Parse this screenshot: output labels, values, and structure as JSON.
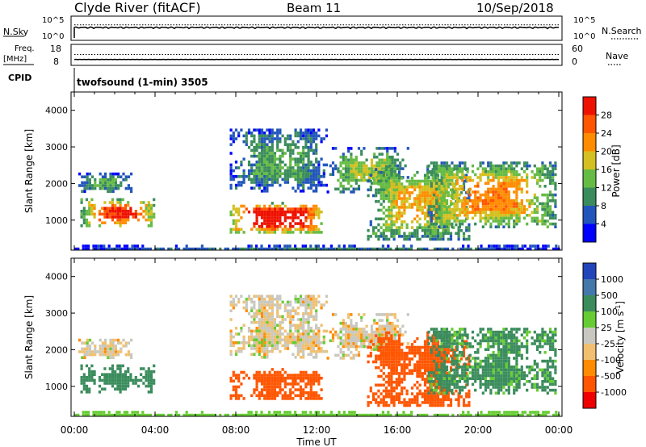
{
  "header": {
    "station": "Clyde River (fitACF)",
    "beam": "Beam 11",
    "date": "10/Sep/2018"
  },
  "nsky_panel": {
    "left_label": "N.Sky",
    "left_ticks": [
      "10^5",
      "10^0"
    ],
    "right_label": "N.Search",
    "right_ticks": [
      "10^5",
      "10^0"
    ],
    "nsky_value": 500,
    "nsearch_value": 3000
  },
  "freq_panel": {
    "label_line1": "Freq.",
    "label_line2": "[MHz]",
    "left_ticks": [
      18,
      8
    ],
    "right_label": "Nave",
    "right_ticks": [
      60,
      0
    ],
    "freq_mhz": 10.2,
    "nave": 38
  },
  "cpid_panel": {
    "label": "CPID",
    "program": "twofsound (1-min) 3505"
  },
  "chart_data": [
    {
      "type": "heatmap",
      "name": "Power",
      "ylabel": "Slant Range [km]",
      "ylim": [
        180,
        4500
      ],
      "yticks": [
        1000,
        2000,
        3000,
        4000
      ],
      "xlim": [
        0,
        24
      ],
      "colorbar": {
        "label": "Power [dB]",
        "ticks": [
          "28",
          "24",
          "20",
          "16",
          "12",
          "8",
          "4"
        ],
        "colors": [
          "#0000ff",
          "#2255bb",
          "#3a8c5c",
          "#66bb44",
          "#d4c020",
          "#ff8c00",
          "#ff5500",
          "#ee1100"
        ]
      },
      "echo_regions": [
        {
          "t0": 0.2,
          "t1": 2.8,
          "r0": 1800,
          "r1": 2300,
          "v": 9
        },
        {
          "t0": 0.3,
          "t1": 4.0,
          "r0": 850,
          "r1": 1600,
          "v": 20
        },
        {
          "t0": 7.7,
          "t1": 12.3,
          "r0": 700,
          "r1": 1500,
          "v": 26
        },
        {
          "t0": 7.7,
          "t1": 12.5,
          "r0": 1800,
          "r1": 3500,
          "v": 8
        },
        {
          "t0": 12.5,
          "t1": 16.5,
          "r0": 1800,
          "r1": 3000,
          "v": 11
        },
        {
          "t0": 14.5,
          "t1": 19.5,
          "r0": 500,
          "r1": 2500,
          "v": 14
        },
        {
          "t0": 17.5,
          "t1": 23.8,
          "r0": 800,
          "r1": 2600,
          "v": 16
        },
        {
          "t0": 0.0,
          "t1": 24.0,
          "r0": 180,
          "r1": 330,
          "v": 6
        }
      ]
    },
    {
      "type": "heatmap",
      "name": "Velocity",
      "ylabel": "Slant Range [km]",
      "ylim": [
        180,
        4500
      ],
      "yticks": [
        1000,
        2000,
        3000,
        4000
      ],
      "xlim": [
        0,
        24
      ],
      "xlabel": "Time UT",
      "xticks": [
        "00:00",
        "04:00",
        "08:00",
        "12:00",
        "16:00",
        "20:00",
        "00:00"
      ],
      "colorbar": {
        "label": "Velocity [m s^-1]",
        "ticks": [
          "1000",
          "500",
          "100",
          "25",
          "-25",
          "-100",
          "-500",
          "-1000"
        ],
        "colors": [
          "#ee0000",
          "#ff5500",
          "#ff8c00",
          "#f0c070",
          "#c8c8c0",
          "#66cc33",
          "#3a8c5c",
          "#4477aa",
          "#2244bb"
        ]
      },
      "echo_regions": [
        {
          "t0": 0.2,
          "t1": 2.8,
          "r0": 1800,
          "r1": 2300,
          "v": 0
        },
        {
          "t0": 0.3,
          "t1": 4.0,
          "r0": 850,
          "r1": 1600,
          "v": 200
        },
        {
          "t0": 7.7,
          "t1": 12.3,
          "r0": 700,
          "r1": 1500,
          "v": -300
        },
        {
          "t0": 7.7,
          "t1": 12.5,
          "r0": 1800,
          "r1": 3500,
          "v": 0
        },
        {
          "t0": 12.5,
          "t1": 16.5,
          "r0": 1800,
          "r1": 3000,
          "v": 0
        },
        {
          "t0": 14.5,
          "t1": 19.5,
          "r0": 500,
          "r1": 2500,
          "v": -300
        },
        {
          "t0": 17.5,
          "t1": 23.8,
          "r0": 800,
          "r1": 2600,
          "v": 150
        },
        {
          "t0": 0.0,
          "t1": 24.0,
          "r0": 180,
          "r1": 330,
          "v": 60
        }
      ]
    }
  ]
}
